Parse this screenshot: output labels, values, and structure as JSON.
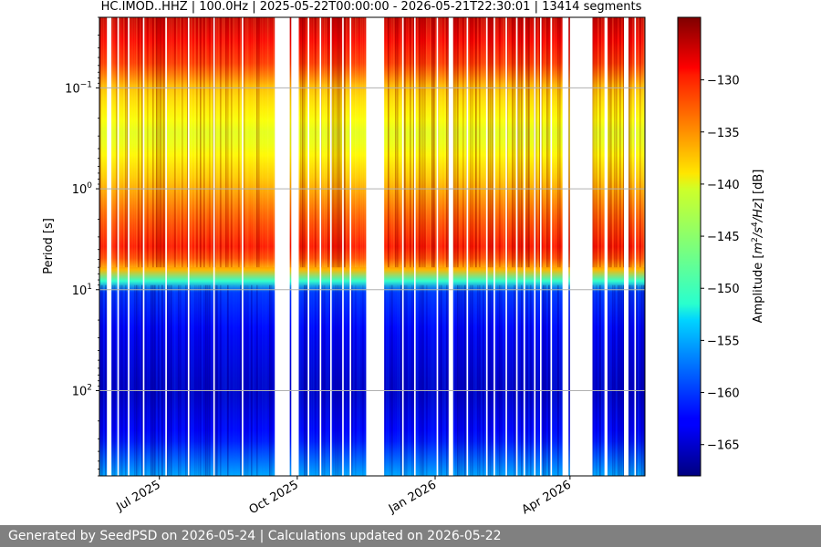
{
  "chart_data": {
    "type": "heatmap",
    "title": "HC.IMOD..HHZ | 100.0Hz | 2025-05-22T00:00:00 - 2026-05-21T22:30:01 | 13414 segments",
    "ylabel": "Period [s]",
    "xlabel": "",
    "y_scale": "log",
    "y_inverted": true,
    "ylim": [
      0.02,
      700
    ],
    "xlim": [
      "2025-05-22",
      "2026-05-21"
    ],
    "x_ticks": [
      {
        "date": "2025-07-01",
        "label": "Jul 2025"
      },
      {
        "date": "2025-10-01",
        "label": "Oct 2025"
      },
      {
        "date": "2026-01-01",
        "label": "Jan 2026"
      },
      {
        "date": "2026-04-01",
        "label": "Apr 2026"
      }
    ],
    "y_ticks": [
      {
        "value": 0.1,
        "base": "10",
        "exp": "−1"
      },
      {
        "value": 1,
        "base": "10",
        "exp": "0"
      },
      {
        "value": 10,
        "base": "10",
        "exp": "1"
      },
      {
        "value": 100,
        "base": "10",
        "exp": "2"
      }
    ],
    "grid": "horizontal",
    "gaps": [
      [
        "2025-05-27",
        "2025-05-30"
      ],
      [
        "2025-06-03",
        "2025-06-04"
      ],
      [
        "2025-06-10",
        "2025-06-11"
      ],
      [
        "2025-06-20",
        "2025-06-21"
      ],
      [
        "2025-07-05",
        "2025-07-06"
      ],
      [
        "2025-07-20",
        "2025-07-21"
      ],
      [
        "2025-08-06",
        "2025-08-07"
      ],
      [
        "2025-08-25",
        "2025-08-26"
      ],
      [
        "2025-09-16",
        "2025-09-26"
      ],
      [
        "2025-09-27",
        "2025-10-02"
      ],
      [
        "2025-10-08",
        "2025-10-09"
      ],
      [
        "2025-10-16",
        "2025-10-17"
      ],
      [
        "2025-10-23",
        "2025-10-24"
      ],
      [
        "2025-10-31",
        "2025-11-01"
      ],
      [
        "2025-11-05",
        "2025-11-06"
      ],
      [
        "2025-11-16",
        "2025-11-28"
      ],
      [
        "2025-12-10",
        "2025-12-11"
      ],
      [
        "2025-12-18",
        "2025-12-19"
      ],
      [
        "2026-01-02",
        "2026-01-03"
      ],
      [
        "2026-01-10",
        "2026-01-13"
      ],
      [
        "2026-01-22",
        "2026-01-23"
      ],
      [
        "2026-02-04",
        "2026-02-05"
      ],
      [
        "2026-02-09",
        "2026-02-10"
      ],
      [
        "2026-02-17",
        "2026-02-18"
      ],
      [
        "2026-02-24",
        "2026-02-25"
      ],
      [
        "2026-03-01",
        "2026-03-02"
      ],
      [
        "2026-03-08",
        "2026-03-09"
      ],
      [
        "2026-03-12",
        "2026-03-13"
      ],
      [
        "2026-03-19",
        "2026-03-20"
      ],
      [
        "2026-03-27",
        "2026-03-31"
      ],
      [
        "2026-04-01",
        "2026-04-16"
      ],
      [
        "2026-04-24",
        "2026-04-26"
      ],
      [
        "2026-05-07",
        "2026-05-10"
      ],
      [
        "2026-05-14",
        "2026-05-15"
      ]
    ],
    "colorbar": {
      "label_parts": [
        "Amplitude [",
        "m",
        "2",
        "/",
        "s",
        "4",
        "/",
        "Hz",
        "] [dB]"
      ],
      "range": [
        -168,
        -124
      ],
      "ticks": [
        -130,
        -135,
        -140,
        -145,
        -150,
        -155,
        -160,
        -165
      ],
      "colormap": "jet",
      "tick_labels": [
        "−130",
        "−135",
        "−140",
        "−145",
        "−150",
        "−155",
        "−160",
        "−165"
      ]
    },
    "spectral_profile": [
      {
        "period": 0.02,
        "db": -127
      },
      {
        "period": 0.06,
        "db": -132
      },
      {
        "period": 0.1,
        "db": -138
      },
      {
        "period": 0.3,
        "db": -142
      },
      {
        "period": 0.8,
        "db": -138
      },
      {
        "period": 2,
        "db": -133
      },
      {
        "period": 4,
        "db": -130
      },
      {
        "period": 6,
        "db": -135
      },
      {
        "period": 8,
        "db": -148
      },
      {
        "period": 10,
        "db": -160
      },
      {
        "period": 30,
        "db": -163
      },
      {
        "period": 100,
        "db": -165
      },
      {
        "period": 300,
        "db": -162
      },
      {
        "period": 700,
        "db": -155
      }
    ]
  },
  "colors": {
    "grid": "#b0b0b0",
    "footer_bg": "#808080",
    "footer_text": "#ffffff"
  },
  "footer": {
    "text": "Generated by SeedPSD on 2026-05-24 | Calculations updated on 2026-05-22"
  }
}
